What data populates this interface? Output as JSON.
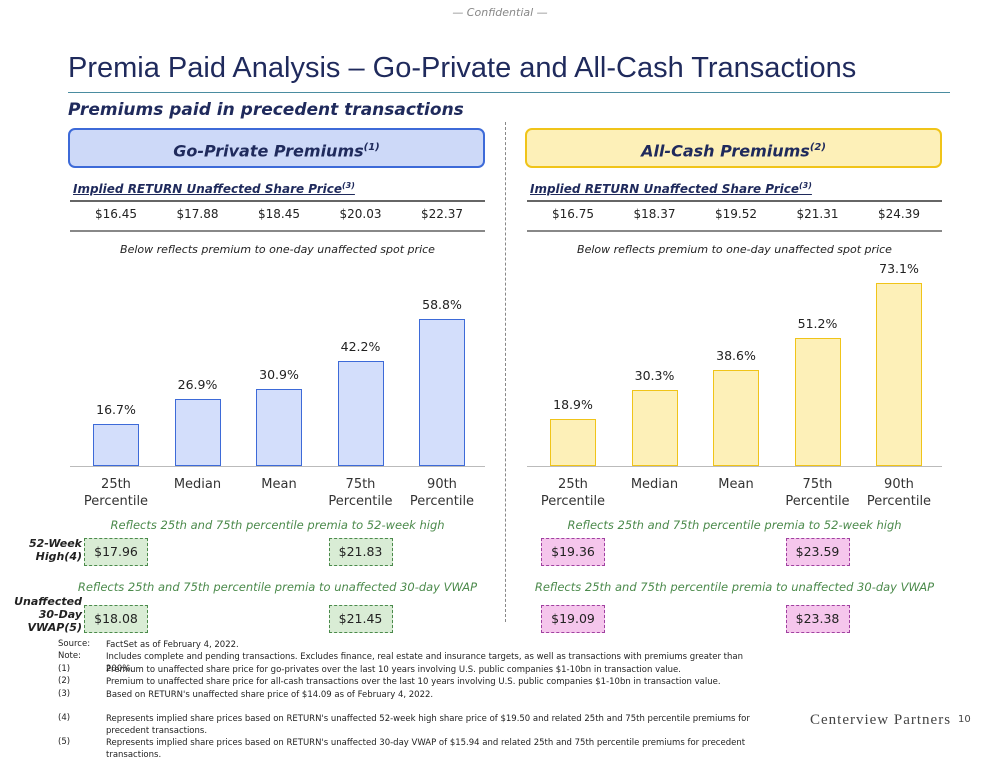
{
  "header": {
    "confidential": "— Confidential —",
    "title": "Premia Paid Analysis – Go-Private and All-Cash Transactions",
    "subtitle": "Premiums paid in precedent transactions"
  },
  "chart_data": [
    {
      "type": "bar",
      "title": "Go-Private Premiums",
      "title_note": "(1)",
      "price_label": "Implied RETURN Unaffected Share Price",
      "price_note": "(3)",
      "prices": [
        "$16.45",
        "$17.88",
        "$18.45",
        "$20.03",
        "$22.37"
      ],
      "caption": "Below reflects premium to one-day unaffected spot price",
      "categories": [
        "25th Percentile",
        "Median",
        "Mean",
        "75th Percentile",
        "90th Percentile"
      ],
      "values": [
        16.7,
        26.9,
        30.9,
        42.2,
        58.8
      ],
      "value_labels": [
        "16.7%",
        "26.9%",
        "30.9%",
        "42.2%",
        "58.8%"
      ],
      "color": "#d3defb",
      "edge_color": "#3d6ad8",
      "box_color": "#cdd9f8",
      "high_note": "Reflects 25th and 75th percentile premia to 52-week high",
      "high_prices": [
        "$17.96",
        "$21.83"
      ],
      "vwap_note": "Reflects 25th and 75th percentile premia to unaffected 30-day VWAP",
      "vwap_prices": [
        "$18.08",
        "$21.45"
      ],
      "price_box_color": "#d9ecd5",
      "price_box_edge": "#4b8a4b"
    },
    {
      "type": "bar",
      "title": "All-Cash Premiums",
      "title_note": "(2)",
      "price_label": "Implied RETURN Unaffected Share Price",
      "price_note": "(3)",
      "prices": [
        "$16.75",
        "$18.37",
        "$19.52",
        "$21.31",
        "$24.39"
      ],
      "caption": "Below reflects premium to one-day unaffected spot price",
      "categories": [
        "25th Percentile",
        "Median",
        "Mean",
        "75th Percentile",
        "90th Percentile"
      ],
      "values": [
        18.9,
        30.3,
        38.6,
        51.2,
        73.1
      ],
      "value_labels": [
        "18.9%",
        "30.3%",
        "38.6%",
        "51.2%",
        "73.1%"
      ],
      "color": "#fdf0b8",
      "edge_color": "#f0c419",
      "box_color": "#fdf0b8",
      "high_note": "Reflects 25th and 75th percentile premia to 52-week high",
      "high_prices": [
        "$19.36",
        "$23.59"
      ],
      "vwap_note": "Reflects 25th and 75th percentile premia to unaffected 30-day VWAP",
      "vwap_prices": [
        "$19.09",
        "$23.38"
      ],
      "price_box_color": "#f5c6ec",
      "price_box_edge": "#a040a0"
    }
  ],
  "row_labels": {
    "high": "52-Week High(4)",
    "vwap": "Unaffected 30-Day VWAP(5)"
  },
  "footnotes": [
    [
      "Source:",
      "FactSet as of February 4, 2022."
    ],
    [
      "Note:",
      "Includes complete and pending transactions. Excludes finance, real estate and insurance targets, as well as transactions with premiums greater than 200%."
    ],
    [
      "(1)",
      "Premium to unaffected share price for go-privates over the last 10 years involving U.S. public companies $1-10bn in transaction value."
    ],
    [
      "(2)",
      "Premium to unaffected share price for all-cash transactions over the last 10 years involving U.S. public companies $1-10bn in transaction value."
    ],
    [
      "(3)",
      "Based on RETURN's unaffected share price of $14.09 as of February 4, 2022."
    ],
    [
      "(4)",
      "Represents implied share prices based on RETURN's unaffected 52-week high share price of $19.50 and related 25th and 75th percentile premiums for precedent transactions."
    ],
    [
      "(5)",
      "Represents implied share prices based on RETURN's unaffected 30-day VWAP of $15.94 and related 25th and 75th percentile premiums for precedent transactions."
    ]
  ],
  "footer": {
    "logo": "Centerview Partners",
    "page": "10"
  }
}
